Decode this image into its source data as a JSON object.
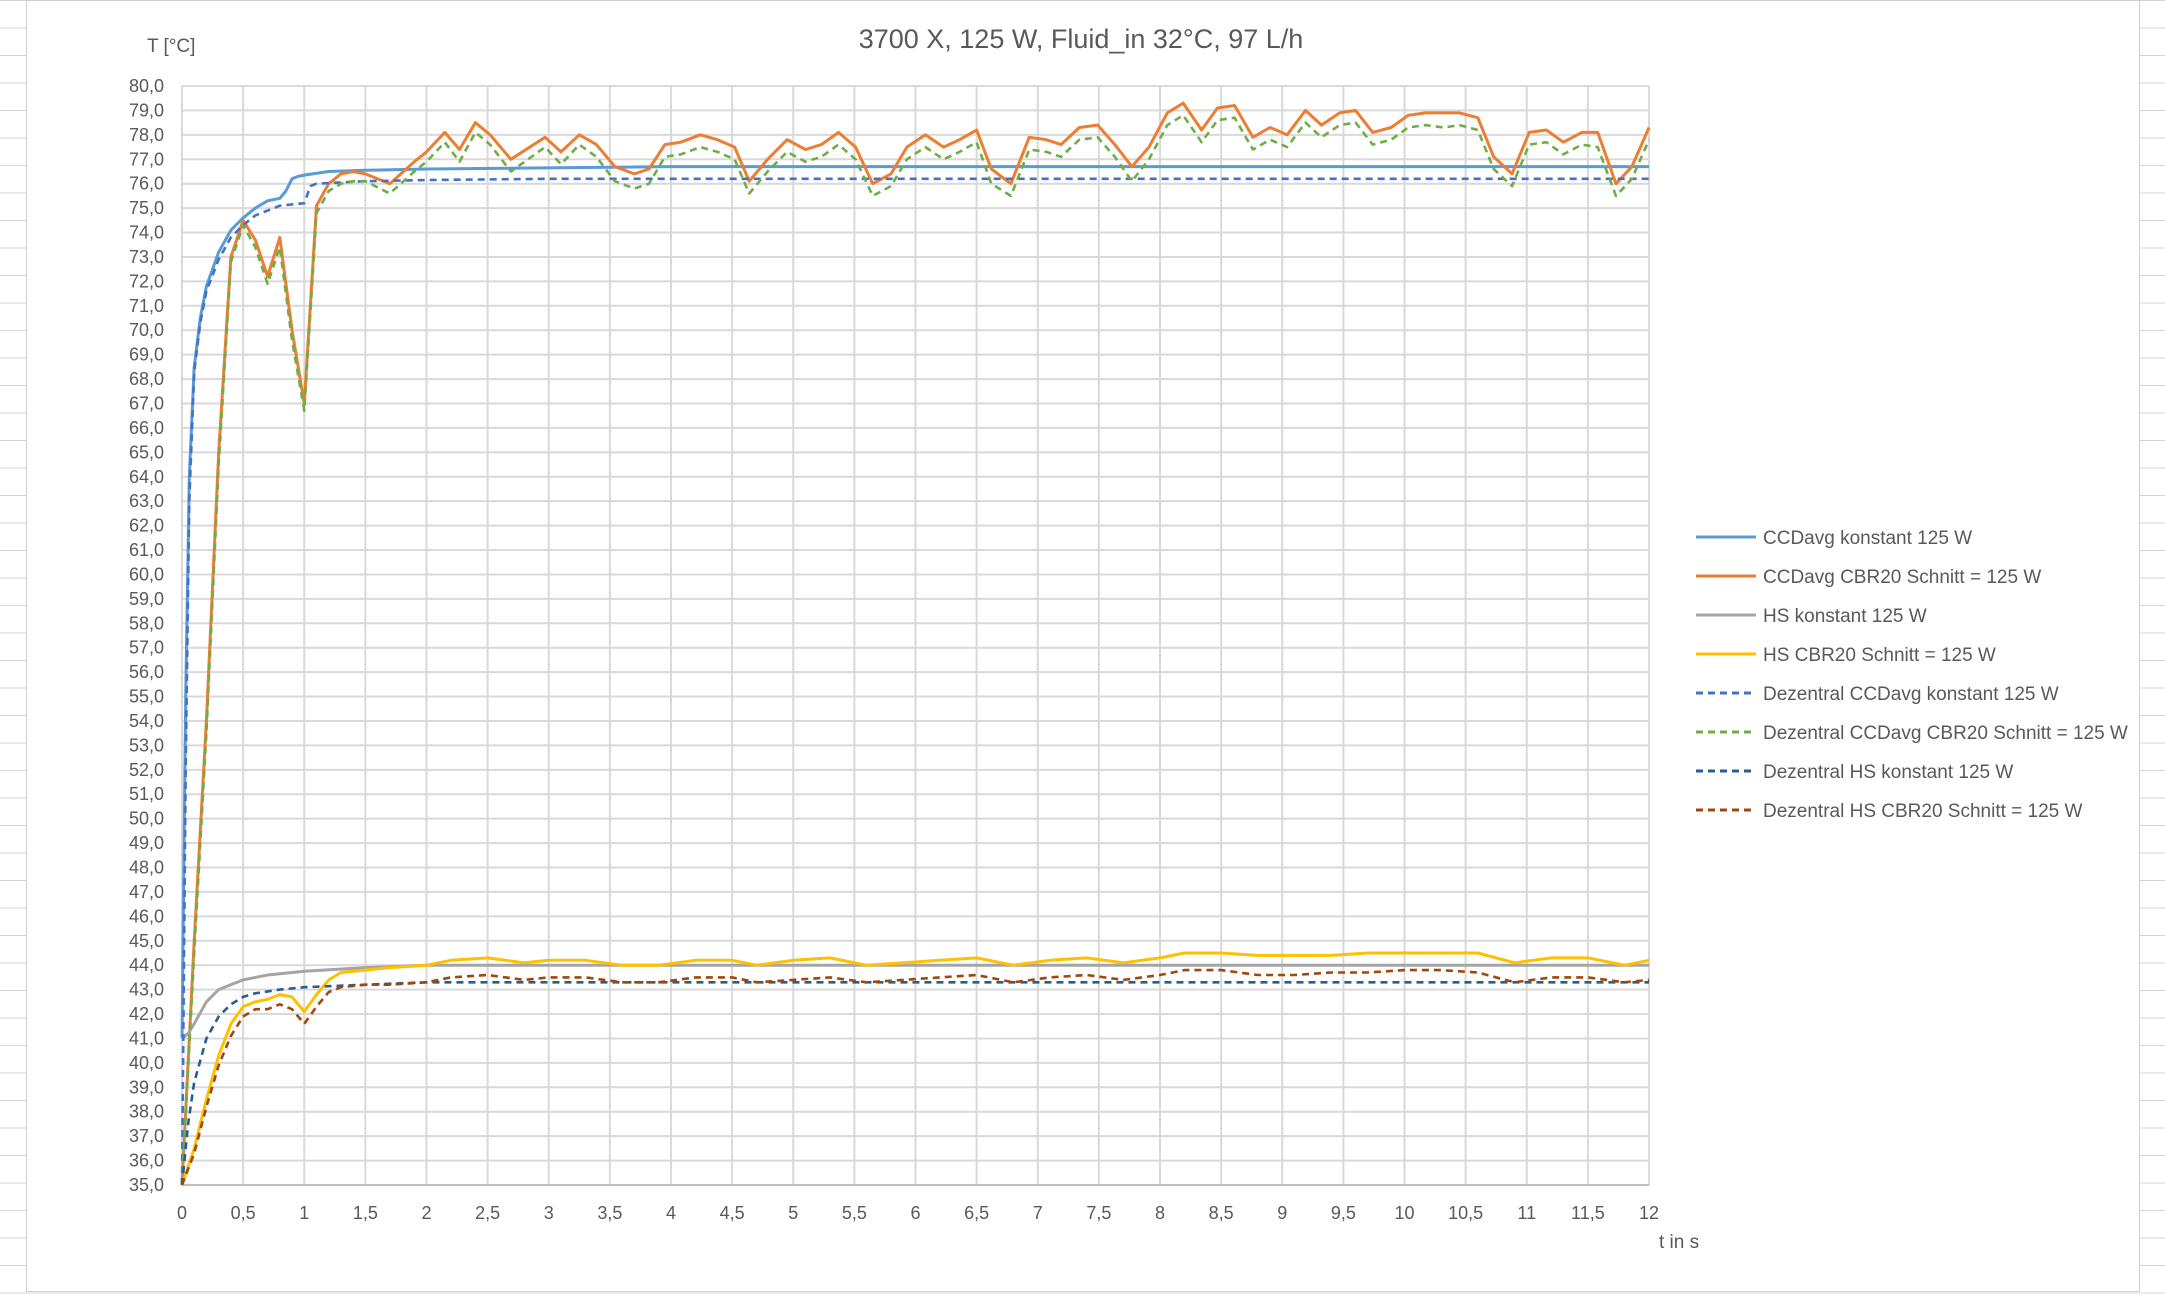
{
  "chart_data": {
    "type": "line",
    "title": "3700 X, 125 W, Fluid_in 32°C, 97 L/h",
    "xlabel": "t in s",
    "ylabel": "T [°C]",
    "xlim": [
      0,
      12
    ],
    "ylim": [
      35,
      80
    ],
    "grid": true,
    "legend_position": "right",
    "x_ticks": [
      "0",
      "0,5",
      "1",
      "1,5",
      "2",
      "2,5",
      "3",
      "3,5",
      "4",
      "4,5",
      "5",
      "5,5",
      "6",
      "6,5",
      "7",
      "7,5",
      "8",
      "8,5",
      "9",
      "9,5",
      "10",
      "10,5",
      "11",
      "11,5",
      "12"
    ],
    "y_ticks": [
      "35,0",
      "36,0",
      "37,0",
      "38,0",
      "39,0",
      "40,0",
      "41,0",
      "42,0",
      "43,0",
      "44,0",
      "45,0",
      "46,0",
      "47,0",
      "48,0",
      "49,0",
      "50,0",
      "51,0",
      "52,0",
      "53,0",
      "54,0",
      "55,0",
      "56,0",
      "57,0",
      "58,0",
      "59,0",
      "60,0",
      "61,0",
      "62,0",
      "63,0",
      "64,0",
      "65,0",
      "66,0",
      "67,0",
      "68,0",
      "69,0",
      "70,0",
      "71,0",
      "72,0",
      "73,0",
      "74,0",
      "75,0",
      "76,0",
      "77,0",
      "78,0",
      "79,0",
      "80,0"
    ],
    "series": [
      {
        "name": "CCDavg konstant 125 W",
        "color": "#5b9bd5",
        "dash": false,
        "x": [
          0,
          0.03,
          0.06,
          0.1,
          0.15,
          0.2,
          0.3,
          0.4,
          0.5,
          0.6,
          0.7,
          0.8,
          0.85,
          0.9,
          0.95,
          1.0,
          1.2,
          1.5,
          2,
          4,
          12
        ],
        "y": [
          41,
          55,
          64,
          68.5,
          70.5,
          71.8,
          73.2,
          74.1,
          74.6,
          75.0,
          75.3,
          75.4,
          75.7,
          76.2,
          76.3,
          76.35,
          76.5,
          76.55,
          76.6,
          76.7,
          76.7
        ]
      },
      {
        "name": "CCDavg CBR20 Schnitt = 125 W",
        "color": "#ed7d31",
        "dash": false,
        "x": [
          0,
          0.1,
          0.2,
          0.3,
          0.4,
          0.5,
          0.6,
          0.7,
          0.8,
          0.9,
          1.0,
          1.1,
          1.2,
          1.3,
          1.4,
          1.5,
          1.7,
          1.9,
          2.0,
          2.15,
          2.27,
          2.4,
          2.52,
          2.69,
          2.97,
          3.1,
          3.25,
          3.39,
          3.54,
          3.7,
          3.82,
          3.95,
          4.08,
          4.24,
          4.38,
          4.52,
          4.64,
          4.79,
          4.95,
          5.1,
          5.23,
          5.37,
          5.51,
          5.65,
          5.8,
          5.93,
          6.08,
          6.23,
          6.36,
          6.5,
          6.62,
          6.78,
          6.93,
          7.07,
          7.19,
          7.34,
          7.49,
          7.63,
          7.77,
          7.91,
          8.06,
          8.19,
          8.34,
          8.47,
          8.61,
          8.76,
          8.9,
          9.04,
          9.19,
          9.32,
          9.47,
          9.6,
          9.74,
          9.89,
          10.03,
          10.17,
          10.32,
          10.45,
          10.6,
          10.73,
          10.88,
          11.02,
          11.16,
          11.3,
          11.45,
          11.58,
          11.73,
          11.86,
          12
        ],
        "y": [
          35,
          45,
          54,
          65,
          73,
          74.5,
          73.7,
          72.2,
          73.8,
          70,
          67,
          75.1,
          76,
          76.4,
          76.5,
          76.4,
          76.0,
          76.9,
          77.3,
          78.1,
          77.4,
          78.5,
          78.0,
          77.0,
          77.9,
          77.3,
          78.0,
          77.6,
          76.7,
          76.4,
          76.6,
          77.6,
          77.7,
          78.0,
          77.8,
          77.5,
          76.1,
          77.0,
          77.8,
          77.4,
          77.6,
          78.1,
          77.5,
          76.0,
          76.4,
          77.5,
          78.0,
          77.5,
          77.8,
          78.2,
          76.6,
          76.0,
          77.9,
          77.8,
          77.6,
          78.3,
          78.4,
          77.6,
          76.7,
          77.5,
          78.9,
          79.3,
          78.2,
          79.1,
          79.2,
          77.9,
          78.3,
          78.0,
          79.0,
          78.4,
          78.9,
          79.0,
          78.1,
          78.3,
          78.8,
          78.9,
          78.9,
          78.9,
          78.7,
          77.1,
          76.4,
          78.1,
          78.2,
          77.7,
          78.1,
          78.1,
          76.0,
          76.7,
          78.3
        ]
      },
      {
        "name": "HS konstant 125 W",
        "color": "#a5a5a5",
        "dash": false,
        "x": [
          0,
          0.05,
          0.1,
          0.2,
          0.3,
          0.4,
          0.5,
          0.7,
          1.0,
          1.5,
          2,
          12
        ],
        "y": [
          41,
          41.2,
          41.6,
          42.5,
          43.0,
          43.2,
          43.4,
          43.6,
          43.75,
          43.9,
          44.0,
          44.0
        ]
      },
      {
        "name": "HS CBR20 Schnitt = 125 W",
        "color": "#ffc000",
        "dash": false,
        "x": [
          0,
          0.1,
          0.2,
          0.3,
          0.4,
          0.5,
          0.6,
          0.7,
          0.8,
          0.9,
          1.0,
          1.1,
          1.2,
          1.3,
          1.5,
          1.7,
          2.0,
          2.2,
          2.5,
          2.8,
          3.0,
          3.3,
          3.6,
          3.9,
          4.2,
          4.5,
          4.7,
          5.0,
          5.3,
          5.6,
          5.9,
          6.2,
          6.5,
          6.8,
          7.1,
          7.4,
          7.7,
          8.0,
          8.2,
          8.5,
          8.8,
          9.1,
          9.4,
          9.7,
          10.0,
          10.3,
          10.6,
          10.9,
          11.2,
          11.5,
          11.8,
          12
        ],
        "y": [
          35,
          36.5,
          38.5,
          40.3,
          41.6,
          42.3,
          42.5,
          42.6,
          42.8,
          42.7,
          42.1,
          42.8,
          43.4,
          43.7,
          43.8,
          43.9,
          44.0,
          44.2,
          44.3,
          44.1,
          44.2,
          44.2,
          44.0,
          44.0,
          44.2,
          44.2,
          44.0,
          44.2,
          44.3,
          44.0,
          44.1,
          44.2,
          44.3,
          44.0,
          44.2,
          44.3,
          44.1,
          44.3,
          44.5,
          44.5,
          44.4,
          44.4,
          44.4,
          44.5,
          44.5,
          44.5,
          44.5,
          44.1,
          44.3,
          44.3,
          44.0,
          44.2
        ]
      },
      {
        "name": "Dezentral CCDavg konstant 125 W",
        "color": "#4472c4",
        "dash": true,
        "x": [
          0,
          0.03,
          0.06,
          0.1,
          0.15,
          0.2,
          0.3,
          0.4,
          0.5,
          0.6,
          0.7,
          0.8,
          0.9,
          1.0,
          1.05,
          1.1,
          1.5,
          2,
          3,
          12
        ],
        "y": [
          35,
          52,
          63,
          68.3,
          70.3,
          71.6,
          72.9,
          73.8,
          74.3,
          74.7,
          74.9,
          75.1,
          75.15,
          75.2,
          75.9,
          76.0,
          76.1,
          76.15,
          76.2,
          76.2
        ]
      },
      {
        "name": "Dezentral CCDavg CBR20 Schnitt = 125 W",
        "color": "#70ad47",
        "dash": true,
        "x": [
          0,
          0.1,
          0.2,
          0.3,
          0.4,
          0.5,
          0.6,
          0.7,
          0.8,
          0.9,
          1.0,
          1.1,
          1.2,
          1.3,
          1.4,
          1.5,
          1.7,
          1.9,
          2.0,
          2.15,
          2.27,
          2.4,
          2.52,
          2.69,
          2.97,
          3.1,
          3.25,
          3.39,
          3.54,
          3.7,
          3.82,
          3.95,
          4.08,
          4.24,
          4.38,
          4.52,
          4.64,
          4.79,
          4.95,
          5.1,
          5.23,
          5.37,
          5.51,
          5.65,
          5.8,
          5.93,
          6.08,
          6.23,
          6.36,
          6.5,
          6.62,
          6.78,
          6.93,
          7.07,
          7.19,
          7.34,
          7.49,
          7.63,
          7.77,
          7.91,
          8.06,
          8.19,
          8.34,
          8.47,
          8.61,
          8.76,
          8.9,
          9.04,
          9.19,
          9.32,
          9.47,
          9.6,
          9.74,
          9.89,
          10.03,
          10.17,
          10.32,
          10.45,
          10.6,
          10.73,
          10.88,
          11.02,
          11.16,
          11.3,
          11.45,
          11.58,
          11.73,
          11.86,
          12
        ],
        "y": [
          35,
          44.5,
          53.5,
          64.5,
          72.8,
          74.3,
          73.4,
          71.9,
          73.4,
          69.6,
          66.7,
          74.8,
          75.7,
          76.0,
          76.1,
          76.1,
          75.6,
          76.5,
          76.9,
          77.7,
          76.9,
          78.1,
          77.6,
          76.5,
          77.5,
          76.8,
          77.6,
          77.1,
          76.1,
          75.8,
          76.0,
          77.1,
          77.2,
          77.5,
          77.3,
          77.0,
          75.6,
          76.5,
          77.3,
          76.9,
          77.1,
          77.6,
          77.0,
          75.5,
          75.9,
          77.0,
          77.5,
          77.0,
          77.3,
          77.7,
          76.0,
          75.5,
          77.4,
          77.3,
          77.1,
          77.8,
          77.9,
          77.1,
          76.1,
          77.0,
          78.4,
          78.8,
          77.7,
          78.6,
          78.7,
          77.4,
          77.8,
          77.5,
          78.5,
          77.9,
          78.4,
          78.5,
          77.6,
          77.8,
          78.3,
          78.4,
          78.3,
          78.4,
          78.2,
          76.6,
          75.9,
          77.6,
          77.7,
          77.2,
          77.6,
          77.5,
          75.5,
          76.2,
          77.8
        ]
      },
      {
        "name": "Dezentral HS konstant 125 W",
        "color": "#255e91",
        "dash": true,
        "x": [
          0,
          0.05,
          0.1,
          0.2,
          0.3,
          0.4,
          0.5,
          0.6,
          0.8,
          1.0,
          1.5,
          2,
          12
        ],
        "y": [
          35,
          37.5,
          39.2,
          41.0,
          41.9,
          42.4,
          42.7,
          42.85,
          43.0,
          43.1,
          43.2,
          43.3,
          43.3
        ]
      },
      {
        "name": "Dezentral HS CBR20 Schnitt = 125 W",
        "color": "#9e480e",
        "dash": true,
        "x": [
          0,
          0.1,
          0.2,
          0.3,
          0.4,
          0.5,
          0.6,
          0.7,
          0.8,
          0.9,
          1.0,
          1.1,
          1.2,
          1.3,
          1.5,
          1.7,
          2.0,
          2.2,
          2.5,
          2.8,
          3.0,
          3.3,
          3.6,
          3.9,
          4.2,
          4.5,
          4.7,
          5.0,
          5.3,
          5.6,
          5.9,
          6.2,
          6.5,
          6.8,
          7.1,
          7.4,
          7.7,
          8.0,
          8.2,
          8.5,
          8.8,
          9.1,
          9.4,
          9.7,
          10.0,
          10.3,
          10.6,
          10.9,
          11.2,
          11.5,
          11.8,
          12
        ],
        "y": [
          35,
          36.3,
          38.2,
          39.9,
          41.1,
          41.9,
          42.2,
          42.2,
          42.4,
          42.2,
          41.6,
          42.3,
          42.9,
          43.1,
          43.2,
          43.2,
          43.3,
          43.5,
          43.6,
          43.4,
          43.5,
          43.5,
          43.3,
          43.3,
          43.5,
          43.5,
          43.3,
          43.4,
          43.5,
          43.3,
          43.4,
          43.5,
          43.6,
          43.3,
          43.5,
          43.6,
          43.4,
          43.6,
          43.8,
          43.8,
          43.6,
          43.6,
          43.7,
          43.7,
          43.8,
          43.8,
          43.7,
          43.3,
          43.5,
          43.5,
          43.3,
          43.4
        ]
      }
    ]
  }
}
